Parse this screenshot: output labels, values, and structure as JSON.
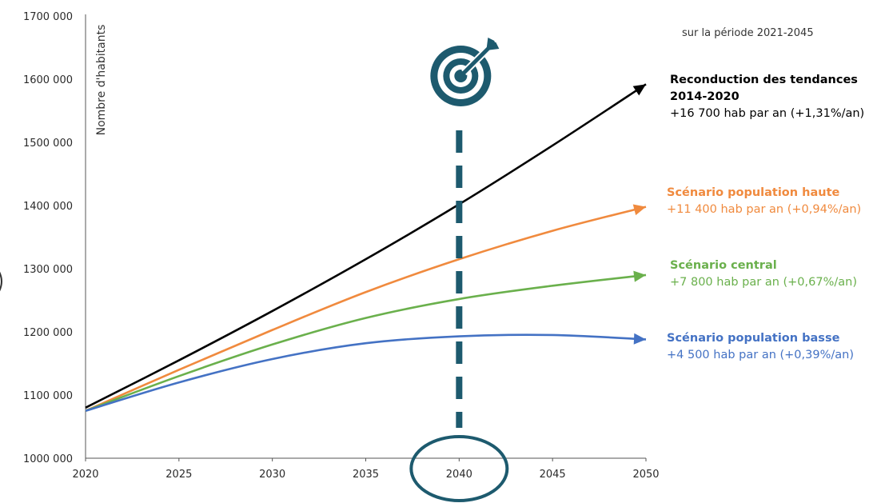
{
  "chart_data": {
    "type": "line",
    "ylabel": "Nombre d'habitants",
    "note": "sur la période 2021-2045",
    "xlim": [
      2020,
      2050
    ],
    "ylim": [
      1000000,
      1700000
    ],
    "x_ticks": [
      "2020",
      "2025",
      "2030",
      "2035",
      "2040",
      "2045",
      "2050"
    ],
    "y_ticks": [
      "1000 000",
      "1100 000",
      "1200 000",
      "1300 000",
      "1400 000",
      "1500 000",
      "1600 000",
      "1700 000"
    ],
    "x": [
      2020,
      2025,
      2030,
      2035,
      2040,
      2045,
      2050
    ],
    "series": [
      {
        "name": "Reconduction des tendances 2014-2020",
        "line1": "Reconduction des tendances",
        "line2": "2014-2020",
        "subtitle": "+16 700 hab par an (+1,31%/an)",
        "color": "#000000",
        "values": [
          1080000,
          1155000,
          1233000,
          1315000,
          1402000,
          1495000,
          1592000
        ]
      },
      {
        "name": "Scénario population haute",
        "subtitle": "+11 400 hab par an (+0,94%/an)",
        "color": "#f08a3e",
        "values": [
          1075000,
          1140000,
          1203000,
          1263000,
          1315000,
          1360000,
          1398000
        ]
      },
      {
        "name": "Scénario central",
        "subtitle": "+7 800 hab par an (+0,67%/an)",
        "color": "#6ab04c",
        "values": [
          1075000,
          1130000,
          1180000,
          1222000,
          1252000,
          1273000,
          1290000
        ]
      },
      {
        "name": "Scénario population basse",
        "subtitle": "+4 500 hab par an (+0,39%/an)",
        "color": "#4472c4",
        "values": [
          1075000,
          1120000,
          1157000,
          1182000,
          1193000,
          1195000,
          1188000
        ]
      }
    ],
    "highlight": {
      "x": 2040,
      "color": "#1d5a6e"
    }
  }
}
